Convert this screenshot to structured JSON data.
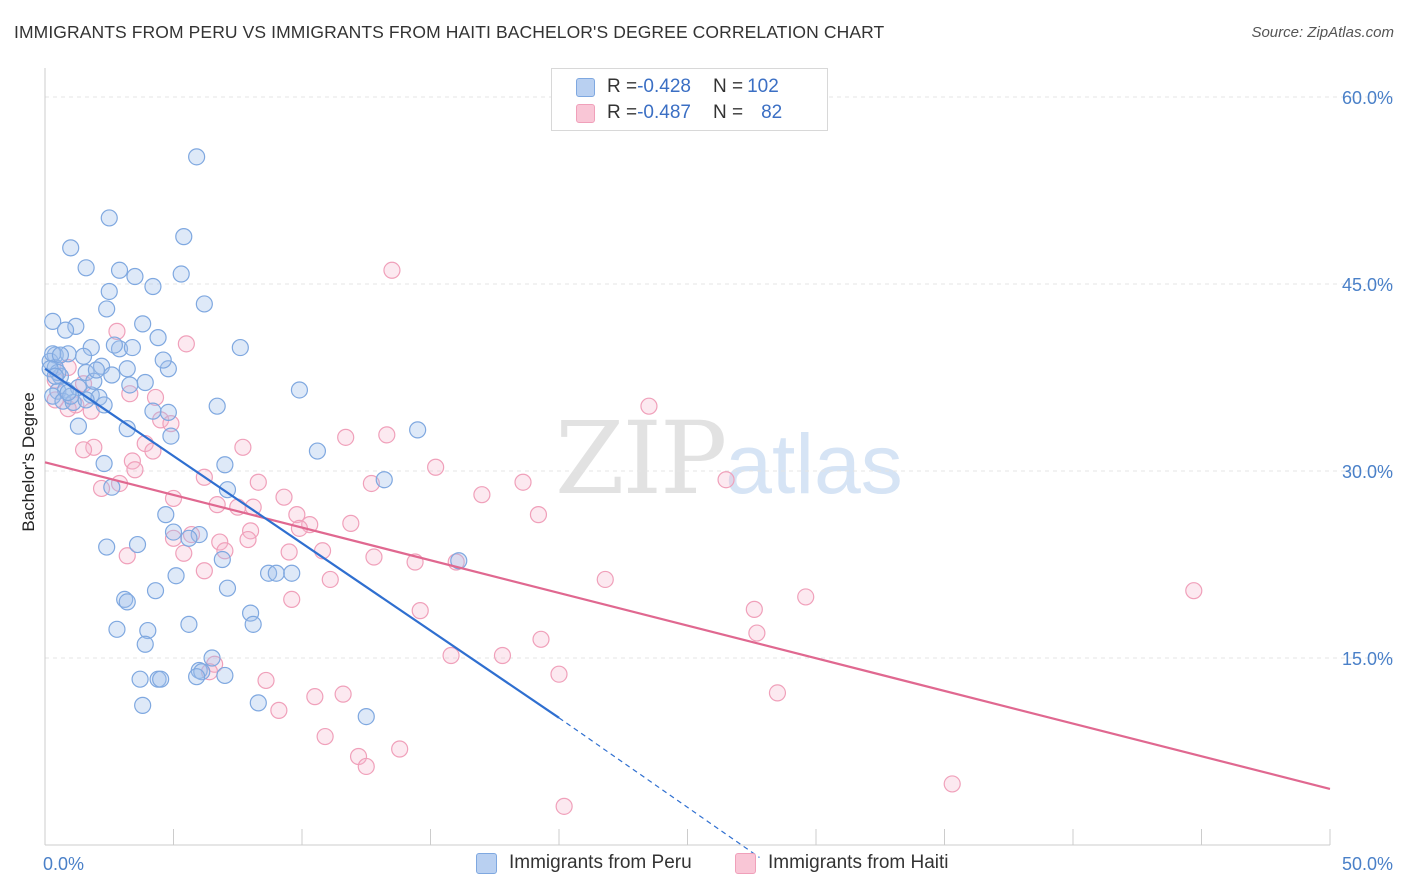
{
  "header": {
    "title": "IMMIGRANTS FROM PERU VS IMMIGRANTS FROM HAITI BACHELOR'S DEGREE CORRELATION CHART",
    "source": "Source: ZipAtlas.com"
  },
  "legend": {
    "peru": {
      "r_label": "R = ",
      "r_value": "-0.428",
      "n_label": "N = ",
      "n_value": "102"
    },
    "haiti": {
      "r_label": "R = ",
      "r_value": "-0.487",
      "n_label": "N = ",
      "n_value": "82"
    }
  },
  "watermark": {
    "a": "ZIP",
    "b": "atlas"
  },
  "chart_data": {
    "type": "scatter",
    "title": "IMMIGRANTS FROM PERU VS IMMIGRANTS FROM HAITI BACHELOR'S DEGREE CORRELATION CHART",
    "xlabel": "",
    "ylabel": "Bachelor's Degree",
    "xlim": [
      0,
      50
    ],
    "ylim": [
      0,
      60
    ],
    "x_tick_labels": [
      "0.0%",
      "50.0%"
    ],
    "y_ticks": [
      15,
      30,
      45,
      60
    ],
    "y_tick_labels": [
      "15.0%",
      "30.0%",
      "45.0%",
      "60.0%"
    ],
    "grid": true,
    "legend_position": "top-center",
    "colors": {
      "peru": "#7fa8e0",
      "peru_line": "#2f6fd0",
      "haiti": "#f0a0ba",
      "haiti_line": "#e06890"
    },
    "series": [
      {
        "name": "Immigrants from Peru",
        "color": "#7fa8e0",
        "trend": {
          "x": [
            0,
            20
          ],
          "y": [
            38.2,
            10.2
          ],
          "dashed_to": [
            27.8,
            -1.0
          ]
        },
        "points": [
          [
            5.9,
            55.2
          ],
          [
            2.5,
            50.3
          ],
          [
            5.4,
            48.8
          ],
          [
            1.0,
            47.9
          ],
          [
            1.6,
            46.3
          ],
          [
            2.9,
            46.1
          ],
          [
            3.5,
            45.6
          ],
          [
            4.2,
            44.8
          ],
          [
            5.3,
            45.8
          ],
          [
            2.5,
            44.4
          ],
          [
            6.2,
            43.4
          ],
          [
            2.4,
            43.0
          ],
          [
            0.3,
            42.0
          ],
          [
            1.2,
            41.6
          ],
          [
            3.8,
            41.8
          ],
          [
            0.8,
            41.3
          ],
          [
            4.4,
            40.7
          ],
          [
            0.4,
            39.3
          ],
          [
            1.8,
            39.9
          ],
          [
            2.9,
            39.8
          ],
          [
            3.4,
            39.9
          ],
          [
            2.7,
            40.1
          ],
          [
            7.6,
            39.9
          ],
          [
            0.9,
            39.4
          ],
          [
            1.5,
            39.2
          ],
          [
            0.2,
            38.8
          ],
          [
            0.4,
            38.3
          ],
          [
            2.2,
            38.4
          ],
          [
            3.2,
            38.2
          ],
          [
            4.8,
            38.2
          ],
          [
            4.6,
            38.9
          ],
          [
            0.6,
            37.6
          ],
          [
            1.6,
            37.9
          ],
          [
            2.6,
            37.7
          ],
          [
            3.9,
            37.1
          ],
          [
            3.3,
            36.9
          ],
          [
            0.5,
            36.4
          ],
          [
            0.8,
            36.5
          ],
          [
            1.3,
            36.7
          ],
          [
            1.8,
            36.1
          ],
          [
            2.1,
            35.9
          ],
          [
            0.3,
            36.0
          ],
          [
            0.7,
            35.6
          ],
          [
            1.1,
            35.5
          ],
          [
            1.0,
            36.0
          ],
          [
            1.6,
            35.7
          ],
          [
            2.3,
            35.3
          ],
          [
            9.9,
            36.5
          ],
          [
            4.8,
            34.7
          ],
          [
            4.2,
            34.8
          ],
          [
            6.7,
            35.2
          ],
          [
            1.3,
            33.6
          ],
          [
            3.2,
            33.4
          ],
          [
            4.9,
            32.8
          ],
          [
            14.5,
            33.3
          ],
          [
            10.6,
            31.6
          ],
          [
            2.3,
            30.6
          ],
          [
            7.0,
            30.5
          ],
          [
            13.2,
            29.3
          ],
          [
            2.6,
            28.7
          ],
          [
            7.1,
            28.5
          ],
          [
            4.7,
            26.5
          ],
          [
            5.0,
            25.1
          ],
          [
            6.0,
            24.9
          ],
          [
            5.6,
            24.6
          ],
          [
            2.4,
            23.9
          ],
          [
            3.6,
            24.1
          ],
          [
            6.9,
            22.9
          ],
          [
            16.1,
            22.8
          ],
          [
            5.1,
            21.6
          ],
          [
            8.7,
            21.8
          ],
          [
            9.0,
            21.8
          ],
          [
            9.6,
            21.8
          ],
          [
            7.1,
            20.6
          ],
          [
            4.3,
            20.4
          ],
          [
            3.1,
            19.7
          ],
          [
            3.2,
            19.5
          ],
          [
            8.0,
            18.6
          ],
          [
            5.6,
            17.7
          ],
          [
            8.1,
            17.7
          ],
          [
            2.8,
            17.3
          ],
          [
            4.0,
            17.2
          ],
          [
            3.9,
            16.1
          ],
          [
            6.5,
            15.0
          ],
          [
            6.0,
            14.0
          ],
          [
            6.1,
            13.9
          ],
          [
            7.0,
            13.6
          ],
          [
            5.9,
            13.5
          ],
          [
            3.7,
            13.3
          ],
          [
            4.4,
            13.3
          ],
          [
            4.5,
            13.3
          ],
          [
            3.8,
            11.2
          ],
          [
            8.3,
            11.4
          ],
          [
            12.5,
            10.3
          ],
          [
            0.3,
            39.4
          ],
          [
            0.5,
            37.9
          ],
          [
            0.9,
            36.3
          ],
          [
            1.9,
            37.2
          ],
          [
            2.0,
            38.1
          ],
          [
            0.6,
            39.3
          ],
          [
            0.2,
            38.2
          ],
          [
            0.4,
            37.6
          ]
        ]
      },
      {
        "name": "Immigrants from Haiti",
        "color": "#f0a0ba",
        "trend": {
          "x": [
            0,
            50
          ],
          "y": [
            30.7,
            4.5
          ]
        },
        "points": [
          [
            13.5,
            46.1
          ],
          [
            2.8,
            41.2
          ],
          [
            5.5,
            40.2
          ],
          [
            0.9,
            38.3
          ],
          [
            0.4,
            37.3
          ],
          [
            1.5,
            37.0
          ],
          [
            3.3,
            36.2
          ],
          [
            4.3,
            35.9
          ],
          [
            0.4,
            35.7
          ],
          [
            1.2,
            35.3
          ],
          [
            0.9,
            35.0
          ],
          [
            1.8,
            34.8
          ],
          [
            23.5,
            35.2
          ],
          [
            4.5,
            34.1
          ],
          [
            4.9,
            33.8
          ],
          [
            11.7,
            32.7
          ],
          [
            13.3,
            32.9
          ],
          [
            3.9,
            32.2
          ],
          [
            7.7,
            31.9
          ],
          [
            1.9,
            31.9
          ],
          [
            1.5,
            31.7
          ],
          [
            4.2,
            31.6
          ],
          [
            3.4,
            30.8
          ],
          [
            15.2,
            30.3
          ],
          [
            3.5,
            30.1
          ],
          [
            2.9,
            29.0
          ],
          [
            6.2,
            29.5
          ],
          [
            8.3,
            29.1
          ],
          [
            12.7,
            29.0
          ],
          [
            18.6,
            29.1
          ],
          [
            26.5,
            29.3
          ],
          [
            2.2,
            28.6
          ],
          [
            9.3,
            27.9
          ],
          [
            17.0,
            28.1
          ],
          [
            5.0,
            27.8
          ],
          [
            6.7,
            27.3
          ],
          [
            7.5,
            27.1
          ],
          [
            8.1,
            27.1
          ],
          [
            19.2,
            26.5
          ],
          [
            9.8,
            26.5
          ],
          [
            10.3,
            25.7
          ],
          [
            11.9,
            25.8
          ],
          [
            8.0,
            25.2
          ],
          [
            9.9,
            25.4
          ],
          [
            5.7,
            24.9
          ],
          [
            5.0,
            24.6
          ],
          [
            7.9,
            24.5
          ],
          [
            6.8,
            24.3
          ],
          [
            7.0,
            23.6
          ],
          [
            9.5,
            23.5
          ],
          [
            10.8,
            23.6
          ],
          [
            12.8,
            23.1
          ],
          [
            3.2,
            23.2
          ],
          [
            5.4,
            23.4
          ],
          [
            14.4,
            22.7
          ],
          [
            6.2,
            22.0
          ],
          [
            16.0,
            22.7
          ],
          [
            11.1,
            21.3
          ],
          [
            21.8,
            21.3
          ],
          [
            44.7,
            20.4
          ],
          [
            29.6,
            19.9
          ],
          [
            9.6,
            19.7
          ],
          [
            27.6,
            18.9
          ],
          [
            14.6,
            18.8
          ],
          [
            27.7,
            17.0
          ],
          [
            19.3,
            16.5
          ],
          [
            15.8,
            15.2
          ],
          [
            17.8,
            15.2
          ],
          [
            6.6,
            14.5
          ],
          [
            6.4,
            13.9
          ],
          [
            20.0,
            13.7
          ],
          [
            8.6,
            13.2
          ],
          [
            28.5,
            12.2
          ],
          [
            10.5,
            11.9
          ],
          [
            11.6,
            12.1
          ],
          [
            9.1,
            10.8
          ],
          [
            10.9,
            8.7
          ],
          [
            13.8,
            7.7
          ],
          [
            12.2,
            7.1
          ],
          [
            12.5,
            6.3
          ],
          [
            35.3,
            4.9
          ],
          [
            20.2,
            3.1
          ]
        ]
      }
    ]
  },
  "bottom_legend": {
    "peru_label": "Immigrants from Peru",
    "haiti_label": "Immigrants from Haiti"
  }
}
